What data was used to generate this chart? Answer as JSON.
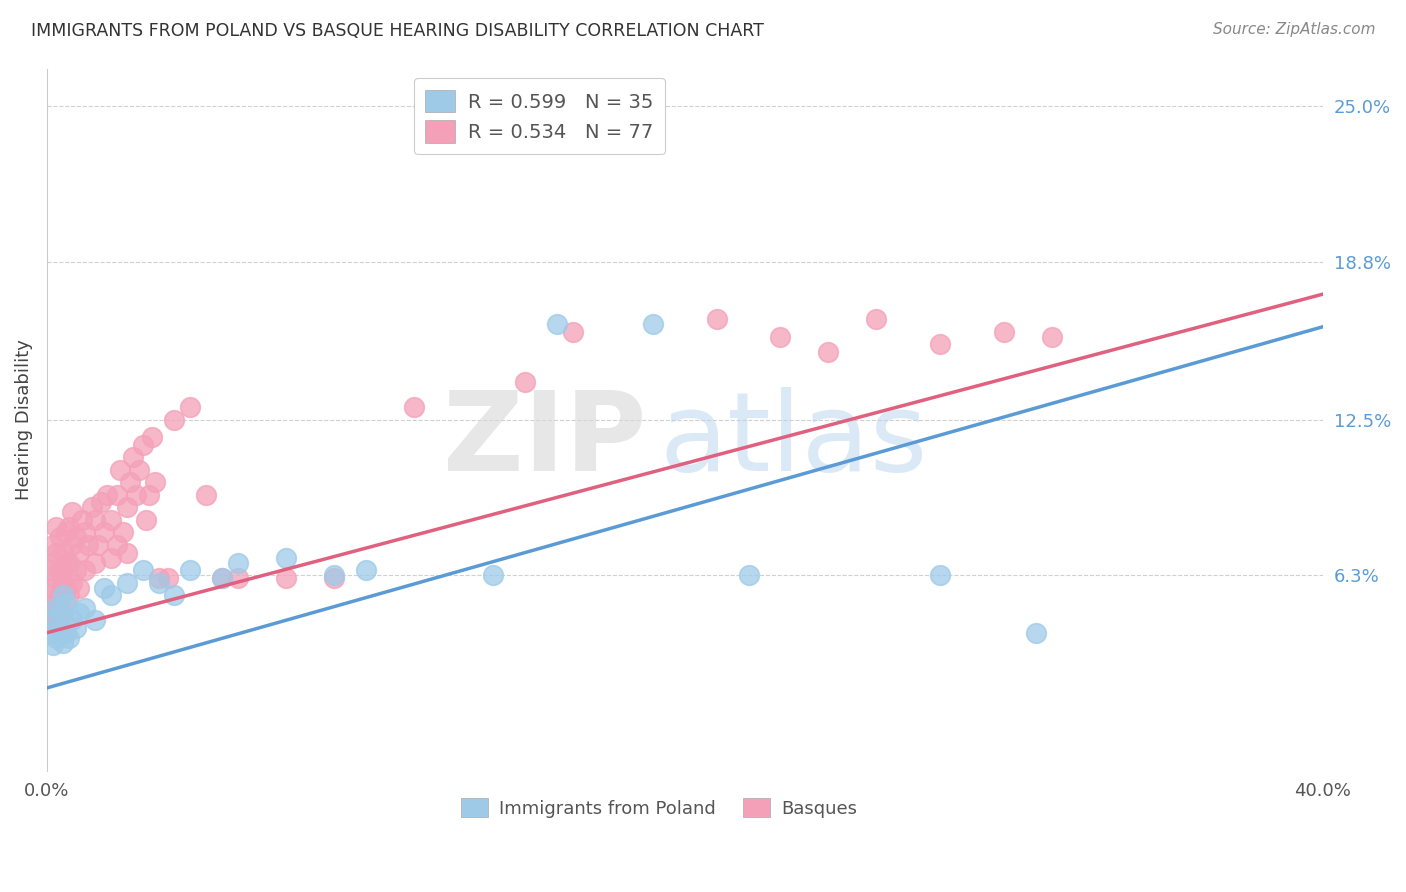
{
  "title": "IMMIGRANTS FROM POLAND VS BASQUE HEARING DISABILITY CORRELATION CHART",
  "source": "Source: ZipAtlas.com",
  "ylabel": "Hearing Disability",
  "x_min": 0.0,
  "x_max": 0.4,
  "y_min": -0.015,
  "y_max": 0.265,
  "y_tick_labels_right": [
    "25.0%",
    "18.8%",
    "12.5%",
    "6.3%"
  ],
  "y_tick_vals_right": [
    0.25,
    0.188,
    0.125,
    0.063
  ],
  "blue_R": "0.599",
  "blue_N": "35",
  "pink_R": "0.534",
  "pink_N": "77",
  "blue_color": "#9ecae8",
  "pink_color": "#f4a0b8",
  "blue_line_color": "#5b9bd5",
  "pink_line_color": "#e06080",
  "blue_line_x0": 0.0,
  "blue_line_y0": 0.018,
  "blue_line_x1": 0.4,
  "blue_line_y1": 0.162,
  "pink_line_x0": 0.0,
  "pink_line_y0": 0.04,
  "pink_line_x1": 0.4,
  "pink_line_y1": 0.175,
  "blue_points_x": [
    0.001,
    0.002,
    0.002,
    0.003,
    0.003,
    0.004,
    0.004,
    0.005,
    0.005,
    0.006,
    0.006,
    0.007,
    0.008,
    0.009,
    0.01,
    0.012,
    0.015,
    0.018,
    0.02,
    0.025,
    0.03,
    0.035,
    0.04,
    0.045,
    0.055,
    0.06,
    0.075,
    0.09,
    0.1,
    0.14,
    0.16,
    0.19,
    0.22,
    0.28,
    0.31
  ],
  "blue_points_y": [
    0.04,
    0.035,
    0.045,
    0.038,
    0.05,
    0.042,
    0.048,
    0.036,
    0.055,
    0.04,
    0.052,
    0.038,
    0.045,
    0.042,
    0.048,
    0.05,
    0.045,
    0.058,
    0.055,
    0.06,
    0.065,
    0.06,
    0.055,
    0.065,
    0.062,
    0.068,
    0.07,
    0.063,
    0.065,
    0.063,
    0.163,
    0.163,
    0.063,
    0.063,
    0.04
  ],
  "pink_points_x": [
    0.001,
    0.001,
    0.001,
    0.002,
    0.002,
    0.002,
    0.002,
    0.003,
    0.003,
    0.003,
    0.003,
    0.004,
    0.004,
    0.004,
    0.005,
    0.005,
    0.005,
    0.006,
    0.006,
    0.006,
    0.007,
    0.007,
    0.007,
    0.008,
    0.008,
    0.008,
    0.009,
    0.009,
    0.01,
    0.01,
    0.011,
    0.012,
    0.012,
    0.013,
    0.014,
    0.015,
    0.015,
    0.016,
    0.017,
    0.018,
    0.019,
    0.02,
    0.02,
    0.022,
    0.022,
    0.023,
    0.024,
    0.025,
    0.025,
    0.026,
    0.027,
    0.028,
    0.029,
    0.03,
    0.031,
    0.032,
    0.033,
    0.034,
    0.035,
    0.038,
    0.04,
    0.045,
    0.05,
    0.055,
    0.06,
    0.075,
    0.09,
    0.115,
    0.15,
    0.165,
    0.21,
    0.23,
    0.245,
    0.26,
    0.28,
    0.3,
    0.315
  ],
  "pink_points_y": [
    0.045,
    0.055,
    0.065,
    0.048,
    0.058,
    0.068,
    0.075,
    0.052,
    0.062,
    0.072,
    0.082,
    0.055,
    0.065,
    0.078,
    0.048,
    0.06,
    0.072,
    0.058,
    0.068,
    0.08,
    0.055,
    0.068,
    0.082,
    0.06,
    0.075,
    0.088,
    0.065,
    0.078,
    0.058,
    0.072,
    0.085,
    0.065,
    0.08,
    0.075,
    0.09,
    0.068,
    0.085,
    0.075,
    0.092,
    0.08,
    0.095,
    0.07,
    0.085,
    0.075,
    0.095,
    0.105,
    0.08,
    0.072,
    0.09,
    0.1,
    0.11,
    0.095,
    0.105,
    0.115,
    0.085,
    0.095,
    0.118,
    0.1,
    0.062,
    0.062,
    0.125,
    0.13,
    0.095,
    0.062,
    0.062,
    0.062,
    0.062,
    0.13,
    0.14,
    0.16,
    0.165,
    0.158,
    0.152,
    0.165,
    0.155,
    0.16,
    0.158
  ],
  "watermark_zip": "ZIP",
  "watermark_atlas": "atlas",
  "background_color": "#ffffff",
  "grid_color": "#d0d0d0"
}
